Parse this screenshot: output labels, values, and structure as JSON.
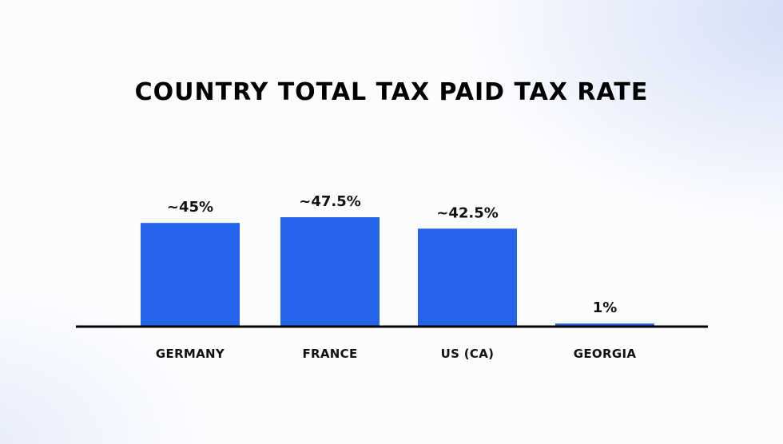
{
  "chart_data": {
    "type": "bar",
    "title": "COUNTRY TOTAL TAX PAID TAX RATE",
    "categories": [
      "GERMANY",
      "FRANCE",
      "US (CA)",
      "GEORGIA"
    ],
    "values": [
      45,
      47.5,
      42.5,
      1
    ],
    "value_labels": [
      "~45%",
      "~47.5%",
      "~42.5%",
      "1%"
    ],
    "xlabel": "",
    "ylabel": "",
    "ylim": [
      0,
      47.5
    ],
    "grid": false,
    "colors": {
      "bar": "#2563eb",
      "axis": "#000000",
      "text": "#111111"
    }
  }
}
